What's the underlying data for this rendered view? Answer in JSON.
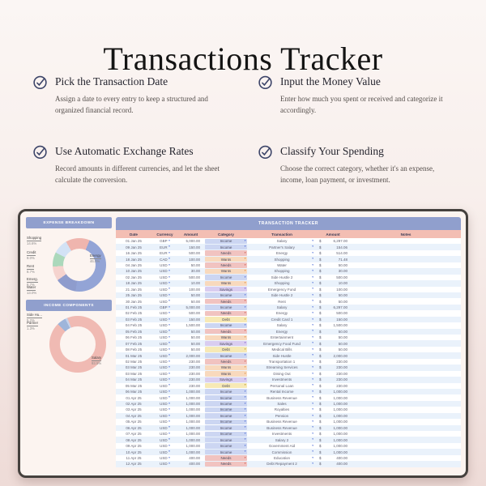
{
  "page": {
    "title": "Transactions Tracker"
  },
  "features": [
    {
      "title": "Pick the Transaction Date",
      "description": "Assign a date to every entry to keep a structured and organized financial record."
    },
    {
      "title": "Input the Money Value",
      "description": "Enter how much you spent or received and categorize it accordingly."
    },
    {
      "title": "Use Automatic Exchange Rates",
      "description": "Record amounts in different currencies, and let the sheet calculate the conversion."
    },
    {
      "title": "Classify Your Spending",
      "description": "Choose the correct category, whether it's an expense, income, loan payment, or investment."
    }
  ],
  "spreadsheet": {
    "sidebar": {
      "expense_header": "EXPENSE BREAKDOWN",
      "income_header": "INCOME COMPONENTS"
    },
    "tracker": {
      "title": "TRANSACTION TRACKER",
      "columns": [
        "Date",
        "Currency",
        "Amount",
        "Category",
        "Transaction",
        "Amount",
        "Notes"
      ],
      "currency_symbol": "$"
    },
    "category_styles": {
      "Income": {
        "bg": "#ccd6f2",
        "arrow": "#4f6fd8"
      },
      "Needs": {
        "bg": "#f1c3c0",
        "arrow": "#cf5a4e"
      },
      "Wants": {
        "bg": "#f8d9bd",
        "arrow": "#e08e3c"
      },
      "Savings": {
        "bg": "#d9cdf0",
        "arrow": "#7d5fd0"
      },
      "Debt": {
        "bg": "#f7e9b5",
        "arrow": "#b8962a"
      }
    },
    "rows": [
      {
        "date": "01 Jan 25",
        "currency": "GBP",
        "amount": "5,000.00",
        "category": "Income",
        "transaction": "Salary",
        "usd": "6,297.00"
      },
      {
        "date": "09 Jan 25",
        "currency": "EUR",
        "amount": "150.00",
        "category": "Income",
        "transaction": "Partner's Salary",
        "usd": "154.06"
      },
      {
        "date": "16 Jan 25",
        "currency": "EUR",
        "amount": "500.00",
        "category": "Needs",
        "transaction": "Energy",
        "usd": "514.00"
      },
      {
        "date": "18 Jan 25",
        "currency": "CAD",
        "amount": "100.00",
        "category": "Wants",
        "transaction": "Shopping",
        "usd": "71.48"
      },
      {
        "date": "04 Jan 25",
        "currency": "USD",
        "amount": "50.00",
        "category": "Needs",
        "transaction": "Water",
        "usd": "50.00"
      },
      {
        "date": "10 Jan 25",
        "currency": "USD",
        "amount": "30.00",
        "category": "Wants",
        "transaction": "Shopping",
        "usd": "30.00"
      },
      {
        "date": "02 Jan 25",
        "currency": "USD",
        "amount": "500.00",
        "category": "Income",
        "transaction": "Side Hustle 2",
        "usd": "500.00"
      },
      {
        "date": "18 Jan 25",
        "currency": "USD",
        "amount": "10.00",
        "category": "Wants",
        "transaction": "Shopping",
        "usd": "10.00"
      },
      {
        "date": "21 Jan 25",
        "currency": "USD",
        "amount": "100.00",
        "category": "Savings",
        "transaction": "Emergency Fund",
        "usd": "100.00"
      },
      {
        "date": "25 Jan 25",
        "currency": "USD",
        "amount": "50.00",
        "category": "Income",
        "transaction": "Side Hustle 2",
        "usd": "50.00"
      },
      {
        "date": "30 Jan 25",
        "currency": "USD",
        "amount": "50.00",
        "category": "Needs",
        "transaction": "Rent",
        "usd": "50.00"
      },
      {
        "date": "01 Feb 25",
        "currency": "GBP",
        "amount": "5,000.00",
        "category": "Income",
        "transaction": "Salary",
        "usd": "6,297.00"
      },
      {
        "date": "02 Feb 25",
        "currency": "USD",
        "amount": "500.00",
        "category": "Needs",
        "transaction": "Energy",
        "usd": "500.00"
      },
      {
        "date": "03 Feb 25",
        "currency": "USD",
        "amount": "150.00",
        "category": "Debt",
        "transaction": "Credit Card 1",
        "usd": "150.00"
      },
      {
        "date": "04 Feb 25",
        "currency": "USD",
        "amount": "1,500.00",
        "category": "Income",
        "transaction": "Salary",
        "usd": "1,500.00"
      },
      {
        "date": "05 Feb 25",
        "currency": "USD",
        "amount": "50.00",
        "category": "Needs",
        "transaction": "Energy",
        "usd": "50.00"
      },
      {
        "date": "06 Feb 25",
        "currency": "USD",
        "amount": "50.00",
        "category": "Wants",
        "transaction": "Entertainment",
        "usd": "50.00"
      },
      {
        "date": "07 Feb 25",
        "currency": "USD",
        "amount": "50.00",
        "category": "Savings",
        "transaction": "Emergency Food Fund",
        "usd": "50.00"
      },
      {
        "date": "08 Feb 25",
        "currency": "USD",
        "amount": "50.00",
        "category": "Debt",
        "transaction": "Medical Bills",
        "usd": "50.00"
      },
      {
        "date": "01 Mar 25",
        "currency": "USD",
        "amount": "2,000.00",
        "category": "Income",
        "transaction": "Side Hustle",
        "usd": "2,000.00"
      },
      {
        "date": "02 Mar 25",
        "currency": "USD",
        "amount": "230.00",
        "category": "Needs",
        "transaction": "Transportation 1",
        "usd": "230.00"
      },
      {
        "date": "03 Mar 25",
        "currency": "USD",
        "amount": "230.00",
        "category": "Wants",
        "transaction": "Streaming Services",
        "usd": "230.00"
      },
      {
        "date": "03 Mar 25",
        "currency": "USD",
        "amount": "230.00",
        "category": "Wants",
        "transaction": "Dining Out",
        "usd": "230.00"
      },
      {
        "date": "04 Mar 25",
        "currency": "USD",
        "amount": "230.00",
        "category": "Savings",
        "transaction": "Investments",
        "usd": "230.00"
      },
      {
        "date": "05 Mar 25",
        "currency": "USD",
        "amount": "230.00",
        "category": "Debt",
        "transaction": "Personal Loan",
        "usd": "230.00"
      },
      {
        "date": "06 Mar 25",
        "currency": "USD",
        "amount": "1,000.00",
        "category": "Income",
        "transaction": "Rental Income",
        "usd": "1,000.00"
      },
      {
        "date": "01 Apr 25",
        "currency": "USD",
        "amount": "1,000.00",
        "category": "Income",
        "transaction": "Business Revenue",
        "usd": "1,000.00"
      },
      {
        "date": "02 Apr 25",
        "currency": "USD",
        "amount": "1,000.00",
        "category": "Income",
        "transaction": "Sales",
        "usd": "1,000.00"
      },
      {
        "date": "03 Apr 25",
        "currency": "USD",
        "amount": "1,000.00",
        "category": "Income",
        "transaction": "Royalties",
        "usd": "1,000.00"
      },
      {
        "date": "04 Apr 25",
        "currency": "USD",
        "amount": "1,000.00",
        "category": "Income",
        "transaction": "Pension",
        "usd": "1,000.00"
      },
      {
        "date": "05 Apr 25",
        "currency": "USD",
        "amount": "1,000.00",
        "category": "Income",
        "transaction": "Business Revenue",
        "usd": "1,000.00"
      },
      {
        "date": "06 Apr 25",
        "currency": "USD",
        "amount": "1,000.00",
        "category": "Income",
        "transaction": "Business Revenue",
        "usd": "1,000.00"
      },
      {
        "date": "07 Apr 25",
        "currency": "USD",
        "amount": "1,000.00",
        "category": "Income",
        "transaction": "Investments",
        "usd": "1,000.00"
      },
      {
        "date": "08 Apr 25",
        "currency": "USD",
        "amount": "1,000.00",
        "category": "Income",
        "transaction": "Salary 2",
        "usd": "1,000.00"
      },
      {
        "date": "09 Apr 25",
        "currency": "USD",
        "amount": "1,000.00",
        "category": "Income",
        "transaction": "Government Aid",
        "usd": "1,000.00"
      },
      {
        "date": "10 Apr 25",
        "currency": "USD",
        "amount": "1,000.00",
        "category": "Income",
        "transaction": "Commission",
        "usd": "1,000.00"
      },
      {
        "date": "11 Apr 25",
        "currency": "USD",
        "amount": "400.00",
        "category": "Needs",
        "transaction": "Education",
        "usd": "400.00"
      },
      {
        "date": "12 Apr 25",
        "currency": "USD",
        "amount": "400.00",
        "category": "Needs",
        "transaction": "Debt Repayment 2",
        "usd": "400.00"
      }
    ]
  },
  "chart_data": [
    {
      "type": "pie",
      "title": "EXPENSE BREAKDOWN",
      "labels": [
        "Shopping",
        "Energy",
        "Water",
        "Emerg.",
        "Rent",
        "Credit"
      ],
      "values": [
        14.6,
        46.0,
        13.0,
        8.7,
        8.7,
        9.0
      ],
      "percent_labels": [
        "14.6%",
        "46.0%",
        "13.0%",
        "8.7%",
        "8.7%",
        "9.0%"
      ],
      "colors": [
        "#efb5ae",
        "#93a4d6",
        "#8e9ccd",
        "#f5d3ce",
        "#abd8bb",
        "#d3e2f5"
      ],
      "hole": 0.62,
      "rotation": -30,
      "legend_position": "callouts"
    },
    {
      "type": "pie",
      "title": "INCOME COMPONENTS",
      "labels": [
        "Side Hu...",
        "Partner",
        "Salary"
      ],
      "values": [
        5.2,
        1.3,
        93.5
      ],
      "percent_labels": [
        "5.2%",
        "1.3%",
        "93.5%"
      ],
      "colors": [
        "#9eb5da",
        "#c5d2ea",
        "#f0bab3"
      ],
      "hole": 0.62,
      "rotation": -45,
      "legend_position": "callouts"
    }
  ]
}
